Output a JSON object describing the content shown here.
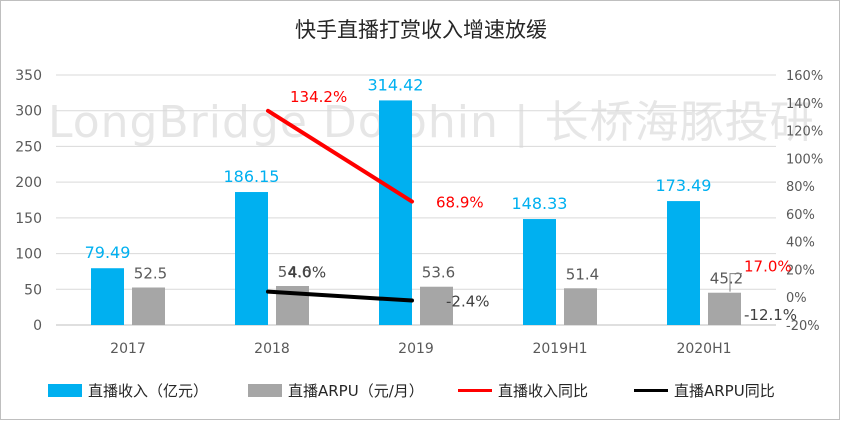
{
  "title": "快手直播打赏收入增速放缓",
  "watermark": "LongBridge Dolphin | 长桥海豚投研",
  "colors": {
    "bar_income": "#00b0f0",
    "bar_arpu": "#a6a6a6",
    "line_income_yoy": "#ff0000",
    "line_arpu_yoy": "#000000",
    "label_income": "#00b0f0",
    "label_arpu": "#595959",
    "label_income_yoy": "#ff0000",
    "label_arpu_yoy": "#404040",
    "grid": "#d9d9d9",
    "axis_text": "#595959"
  },
  "chart_data": {
    "type": "bar",
    "title": "快手直播打赏收入增速放缓",
    "categories": [
      "2017",
      "2018",
      "2019",
      "2019H1",
      "2020H1"
    ],
    "left_axis": {
      "ylim": [
        0,
        350
      ],
      "ticks": [
        "0",
        "50",
        "100",
        "150",
        "200",
        "250",
        "300",
        "350"
      ]
    },
    "right_axis": {
      "ylim": [
        -20,
        160
      ],
      "ticks": [
        "-20%",
        "0%",
        "20%",
        "40%",
        "60%",
        "80%",
        "100%",
        "120%",
        "140%",
        "160%"
      ]
    },
    "grid": true,
    "legend_position": "bottom",
    "series": [
      {
        "name": "直播收入（亿元）",
        "kind": "bar",
        "axis": "left",
        "values": [
          79.49,
          186.15,
          314.42,
          148.33,
          173.49
        ],
        "labels": [
          "79.49",
          "186.15",
          "314.42",
          "148.33",
          "173.49"
        ]
      },
      {
        "name": "直播ARPU（元/月）",
        "kind": "bar",
        "axis": "left",
        "values": [
          52.5,
          54.6,
          53.6,
          51.4,
          45.2
        ],
        "labels": [
          "52.5",
          "54.6",
          "53.6",
          "51.4",
          "45.2"
        ]
      },
      {
        "name": "直播收入同比",
        "kind": "line",
        "axis": "right",
        "values": [
          null,
          134.2,
          68.9,
          null,
          17.0
        ],
        "labels": [
          "",
          "134.2%",
          "68.9%",
          "",
          "17.0%"
        ]
      },
      {
        "name": "直播ARPU同比",
        "kind": "line",
        "axis": "right",
        "values": [
          null,
          4.0,
          -2.4,
          null,
          -12.1
        ],
        "labels": [
          "",
          "4.0%",
          "-2.4%",
          "",
          "-12.1%"
        ]
      }
    ]
  }
}
